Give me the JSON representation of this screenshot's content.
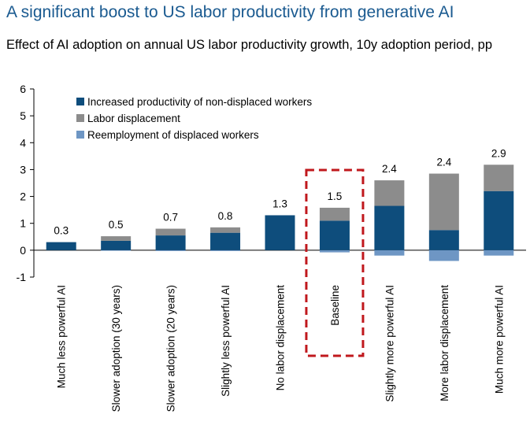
{
  "title": "A significant boost to US labor productivity from generative AI",
  "subtitle": "Effect of AI adoption on annual US labor productivity growth, 10y adoption period, pp",
  "colors": {
    "non_displaced": "#0e4d7c",
    "displacement": "#8c8c8c",
    "reemployment": "#6e96c4",
    "highlight_box": "#c0181d",
    "title": "#1a5a90"
  },
  "chart_data": {
    "type": "bar",
    "stacked": true,
    "categories": [
      "Much less powerful AI",
      "Slower adoption (30 years)",
      "Slower adoption (20 years)",
      "Slightly less powerful AI",
      "No labor displacement",
      "Baseline",
      "Slightly more powerful AI",
      "More labor displacement",
      "Much more powerful AI"
    ],
    "series": [
      {
        "name": "Increased productivity of non-displaced workers",
        "values": [
          0.3,
          0.35,
          0.55,
          0.65,
          1.3,
          1.1,
          1.65,
          0.75,
          2.2
        ]
      },
      {
        "name": "Labor displacement",
        "values": [
          0.0,
          0.17,
          0.25,
          0.2,
          0.0,
          0.48,
          0.95,
          2.1,
          0.98
        ]
      },
      {
        "name": "Reemployment of displaced workers",
        "values": [
          0.0,
          -0.02,
          -0.03,
          -0.03,
          0.0,
          -0.08,
          -0.2,
          -0.4,
          -0.2
        ]
      }
    ],
    "data_labels": [
      "0.3",
      "0.5",
      "0.7",
      "0.8",
      "1.3",
      "1.5",
      "2.4",
      "2.4",
      "2.9"
    ],
    "yticks": [
      "-1",
      "0",
      "1",
      "2",
      "3",
      "4",
      "5",
      "6"
    ],
    "ylim": [
      -1,
      6
    ],
    "highlight_category": "Baseline",
    "legend_position": "top-left"
  }
}
